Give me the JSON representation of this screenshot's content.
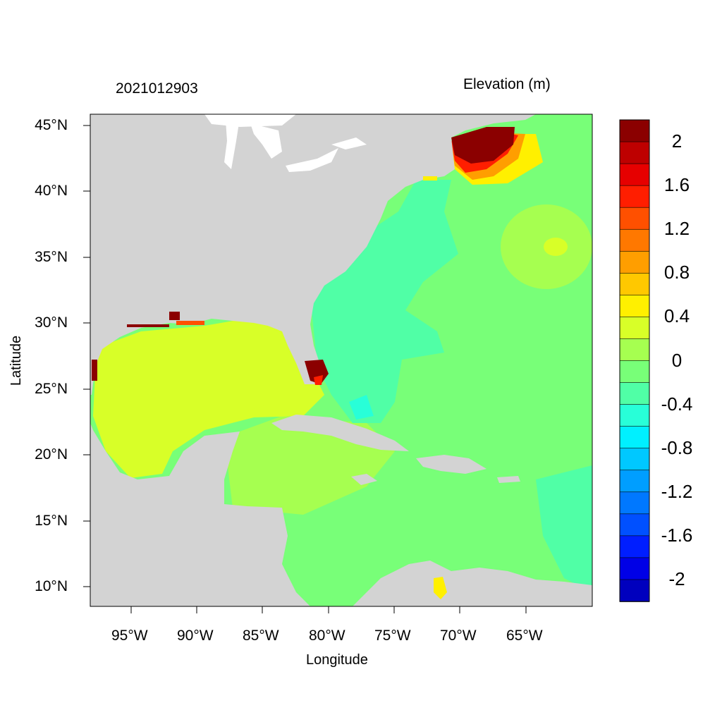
{
  "header": {
    "datetime": "2021012903",
    "variable": "Elevation (m)"
  },
  "axes": {
    "xlabel": "Longitude",
    "ylabel": "Latitude",
    "xticks": [
      "95°W",
      "90°W",
      "85°W",
      "80°W",
      "75°W",
      "70°W",
      "65°W"
    ],
    "yticks": [
      "45°N",
      "40°N",
      "35°N",
      "30°N",
      "25°N",
      "20°N",
      "15°N",
      "10°N"
    ]
  },
  "colorbar": {
    "labels": [
      "2",
      "1.6",
      "1.2",
      "0.8",
      "0.4",
      "0",
      "-0.4",
      "-0.8",
      "-1.2",
      "-1.6",
      "-2"
    ],
    "colors": [
      "#8b0000",
      "#be0000",
      "#e60000",
      "#ff1e00",
      "#ff5000",
      "#ff7800",
      "#ff9e00",
      "#ffc800",
      "#fff000",
      "#d8ff28",
      "#a6ff50",
      "#78ff78",
      "#50ffa6",
      "#28ffd8",
      "#00f0ff",
      "#00c8ff",
      "#009eff",
      "#0078ff",
      "#0050ff",
      "#001eff",
      "#0000e6",
      "#0000be"
    ]
  },
  "colors": {
    "land": "#d3d3d3",
    "lake": "#ffffff"
  }
}
